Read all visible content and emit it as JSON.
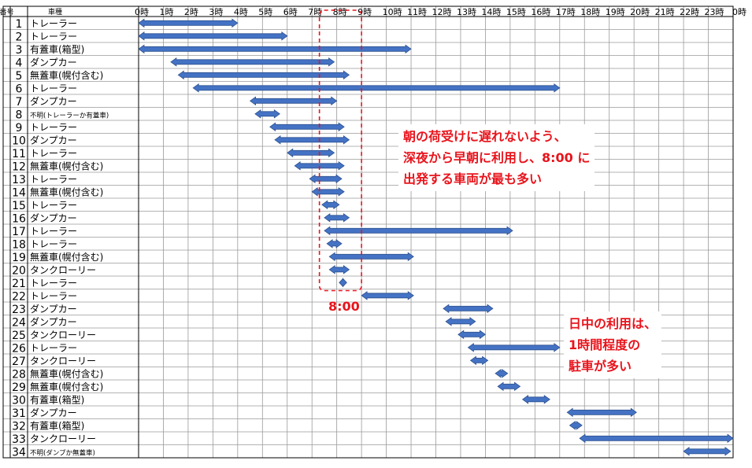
{
  "chart_data": {
    "type": "gantt",
    "header": {
      "number": "番号",
      "vehicle_type": "車種"
    },
    "x_ticks": [
      "0時",
      "1時",
      "2時",
      "3時",
      "4時",
      "5時",
      "6時",
      "7時",
      "8時",
      "9時",
      "10時",
      "11時",
      "12時",
      "13時",
      "14時",
      "15時",
      "16時",
      "17時",
      "18時",
      "19時",
      "20時",
      "21時",
      "22時",
      "23時",
      "0時"
    ],
    "x_range": [
      0,
      24
    ],
    "rows": [
      {
        "no": "1",
        "type": "トレーラー",
        "start": 0.0,
        "end": 4.0
      },
      {
        "no": "2",
        "type": "トレーラー",
        "start": 0.0,
        "end": 6.0
      },
      {
        "no": "3",
        "type": "有蓋車(箱型)",
        "start": 0.0,
        "end": 11.0
      },
      {
        "no": "4",
        "type": "ダンプカー",
        "start": 1.3,
        "end": 7.9
      },
      {
        "no": "5",
        "type": "無蓋車(幌付含む)",
        "start": 1.6,
        "end": 8.5
      },
      {
        "no": "6",
        "type": "トレーラー",
        "start": 2.2,
        "end": 17.0
      },
      {
        "no": "7",
        "type": "ダンプカー",
        "start": 4.5,
        "end": 8.0
      },
      {
        "no": "8",
        "type": "不明(トレーラーか有蓋車)",
        "start": 4.7,
        "end": 5.7,
        "small": true
      },
      {
        "no": "9",
        "type": "トレーラー",
        "start": 5.3,
        "end": 8.3
      },
      {
        "no": "10",
        "type": "ダンプカー",
        "start": 5.5,
        "end": 8.5
      },
      {
        "no": "11",
        "type": "トレーラー",
        "start": 6.0,
        "end": 7.9
      },
      {
        "no": "12",
        "type": "無蓋車(幌付含む)",
        "start": 6.3,
        "end": 8.3
      },
      {
        "no": "13",
        "type": "トレーラー",
        "start": 6.9,
        "end": 8.2
      },
      {
        "no": "14",
        "type": "無蓋車(幌付含む)",
        "start": 7.0,
        "end": 8.3
      },
      {
        "no": "15",
        "type": "トレーラー",
        "start": 7.4,
        "end": 8.1
      },
      {
        "no": "16",
        "type": "ダンプカー",
        "start": 7.5,
        "end": 8.5
      },
      {
        "no": "17",
        "type": "トレーラー",
        "start": 7.5,
        "end": 15.1
      },
      {
        "no": "18",
        "type": "トレーラー",
        "start": 7.6,
        "end": 8.2
      },
      {
        "no": "19",
        "type": "無蓋車(幌付含む)",
        "start": 7.7,
        "end": 11.1
      },
      {
        "no": "20",
        "type": "タンクローリー",
        "start": 7.7,
        "end": 8.5
      },
      {
        "no": "21",
        "type": "トレーラー",
        "start": 8.1,
        "end": 8.4
      },
      {
        "no": "22",
        "type": "トレーラー",
        "start": 9.0,
        "end": 11.1
      },
      {
        "no": "23",
        "type": "ダンプカー",
        "start": 12.3,
        "end": 14.3
      },
      {
        "no": "24",
        "type": "ダンプカー",
        "start": 12.4,
        "end": 13.6
      },
      {
        "no": "25",
        "type": "タンクローリー",
        "start": 12.9,
        "end": 14.0
      },
      {
        "no": "26",
        "type": "トレーラー",
        "start": 13.3,
        "end": 17.0
      },
      {
        "no": "27",
        "type": "タンクローリー",
        "start": 13.4,
        "end": 14.1
      },
      {
        "no": "28",
        "type": "無蓋車(幌付含む)",
        "start": 14.4,
        "end": 14.9
      },
      {
        "no": "29",
        "type": "無蓋車(幌付含む)",
        "start": 14.5,
        "end": 15.4
      },
      {
        "no": "30",
        "type": "有蓋車(箱型)",
        "start": 15.5,
        "end": 16.6
      },
      {
        "no": "31",
        "type": "ダンプカー",
        "start": 17.3,
        "end": 20.1
      },
      {
        "no": "32",
        "type": "有蓋車(箱型)",
        "start": 17.4,
        "end": 17.9
      },
      {
        "no": "33",
        "type": "タンクローリー",
        "start": 17.8,
        "end": 24.0
      },
      {
        "no": "34",
        "type": "不明(ダンプか無蓋車)",
        "start": 22.0,
        "end": 23.9,
        "small": true
      }
    ],
    "highlight": {
      "start": 7.3,
      "end": 9.0,
      "label": "8:00",
      "color": "#e8141c"
    },
    "bar_color": "#4472c4",
    "grid": true
  },
  "annotations": {
    "morning": [
      "朝の荷受けに遅れないよう、",
      "深夜から早朝に利用し、8:00 に",
      "出発する車両が最も多い"
    ],
    "daytime": [
      "日中の利用は、",
      "1時間程度の",
      "駐車が多い"
    ]
  }
}
